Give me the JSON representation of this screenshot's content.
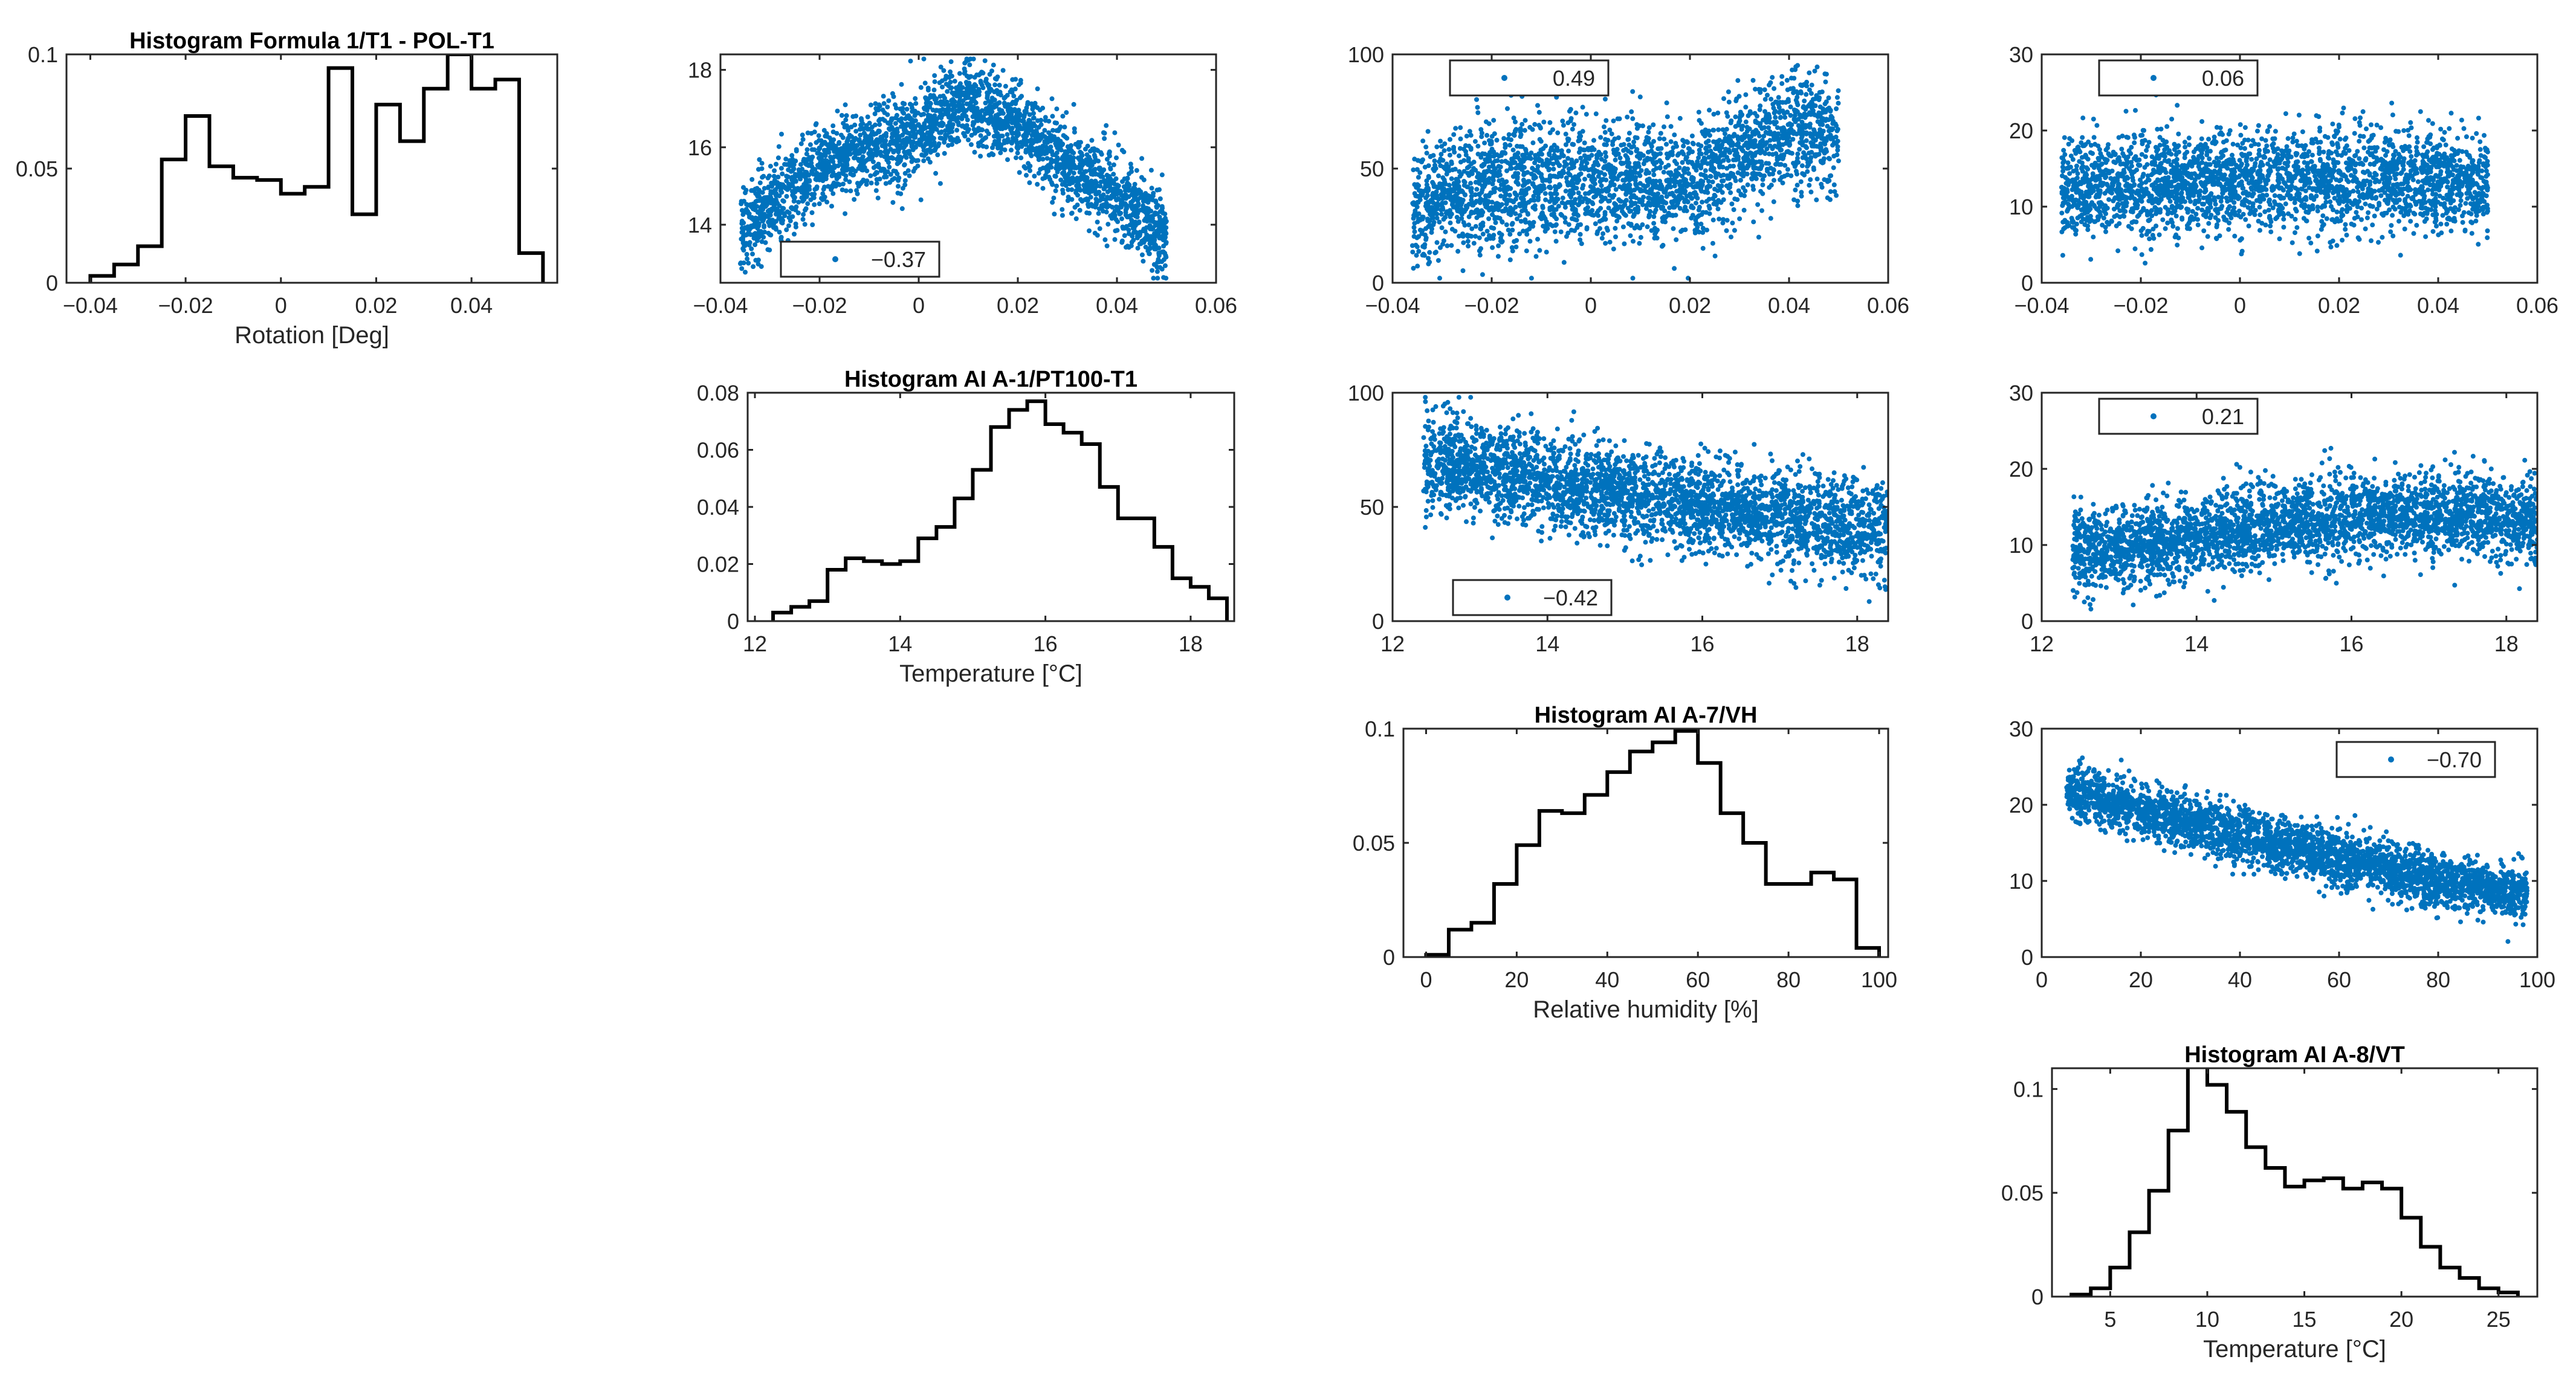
{
  "colors": {
    "scatter": "#0072BD",
    "histogram": "#000000",
    "axis": "#262626",
    "legend_border": "#262626"
  },
  "chart_data": [
    {
      "id": "h1",
      "type": "histogram",
      "title": "Histogram Formula 1/T1 - POL-T1",
      "xlabel": "Rotation [Deg]",
      "ylabel": "",
      "xlim": [
        -0.045,
        0.058
      ],
      "ylim": [
        0,
        0.1
      ],
      "xticks": [
        -0.04,
        -0.02,
        0,
        0.02,
        0.04
      ],
      "yticks": [
        0,
        0.05,
        0.1
      ],
      "xtick_labels": [
        "−0.04",
        "−0.02",
        "0",
        "0.02",
        "0.04"
      ],
      "ytick_labels": [
        "0",
        "0.05",
        "0.1"
      ],
      "edges": [
        -0.04,
        -0.035,
        -0.03,
        -0.025,
        -0.02,
        -0.015,
        -0.01,
        -0.005,
        0,
        0.005,
        0.01,
        0.015,
        0.02,
        0.025,
        0.03,
        0.035,
        0.04,
        0.045,
        0.05,
        0.055
      ],
      "values": [
        0.003,
        0.008,
        0.016,
        0.054,
        0.073,
        0.051,
        0.046,
        0.045,
        0.039,
        0.042,
        0.094,
        0.03,
        0.078,
        0.062,
        0.085,
        0.1,
        0.085,
        0.089,
        0.013
      ]
    },
    {
      "id": "s12",
      "type": "scatter",
      "xlim": [
        -0.04,
        0.06
      ],
      "ylim": [
        12.5,
        18.4
      ],
      "xticks": [
        -0.04,
        -0.02,
        0,
        0.02,
        0.04,
        0.06
      ],
      "yticks": [
        14,
        16,
        18
      ],
      "xtick_labels": [
        "−0.04",
        "−0.02",
        "0",
        "0.02",
        "0.04",
        "0.06"
      ],
      "ytick_labels": [
        "14",
        "16",
        "18"
      ],
      "legend": {
        "label": "−0.37",
        "location": "bottom-left"
      },
      "n_points": 2600,
      "trend": {
        "x": [
          -0.036,
          -0.02,
          0.0,
          0.01,
          0.02,
          0.03,
          0.04,
          0.05
        ],
        "y": [
          13.8,
          15.5,
          16.4,
          17.2,
          16.6,
          15.5,
          14.8,
          13.6
        ]
      },
      "spread": 0.9
    },
    {
      "id": "s13",
      "type": "scatter",
      "xlim": [
        -0.04,
        0.06
      ],
      "ylim": [
        0,
        100
      ],
      "xticks": [
        -0.04,
        -0.02,
        0,
        0.02,
        0.04,
        0.06
      ],
      "yticks": [
        0,
        50,
        100
      ],
      "xtick_labels": [
        "−0.04",
        "−0.02",
        "0",
        "0.02",
        "0.04",
        "0.06"
      ],
      "ytick_labels": [
        "0",
        "50",
        "100"
      ],
      "legend": {
        "label": "0.49",
        "location": "top-left"
      },
      "n_points": 2600,
      "trend": {
        "x": [
          -0.036,
          -0.02,
          0.0,
          0.02,
          0.03,
          0.04,
          0.05
        ],
        "y": [
          32,
          42,
          45,
          44,
          55,
          65,
          68
        ]
      },
      "spread": 22
    },
    {
      "id": "s14",
      "type": "scatter",
      "xlim": [
        -0.04,
        0.06
      ],
      "ylim": [
        0,
        30
      ],
      "xticks": [
        -0.04,
        -0.02,
        0,
        0.02,
        0.04,
        0.06
      ],
      "yticks": [
        0,
        10,
        20,
        30
      ],
      "xtick_labels": [
        "−0.04",
        "−0.02",
        "0",
        "0.02",
        "0.04",
        "0.06"
      ],
      "ytick_labels": [
        "0",
        "10",
        "20",
        "30"
      ],
      "legend": {
        "label": "0.06",
        "location": "top-left"
      },
      "n_points": 2600,
      "trend": {
        "x": [
          -0.036,
          -0.02,
          0.0,
          0.02,
          0.05
        ],
        "y": [
          12,
          13,
          13,
          14,
          13
        ]
      },
      "spread": 5.5
    },
    {
      "id": "h2",
      "type": "histogram",
      "title": "Histogram AI A-1/PT100-T1",
      "xlabel": "Temperature [°C]",
      "ylabel": "",
      "xlim": [
        11.9,
        18.6
      ],
      "ylim": [
        0,
        0.08
      ],
      "xticks": [
        12,
        14,
        16,
        18
      ],
      "yticks": [
        0,
        0.02,
        0.04,
        0.06,
        0.08
      ],
      "xtick_labels": [
        "12",
        "14",
        "16",
        "18"
      ],
      "ytick_labels": [
        "0",
        "0.02",
        "0.04",
        "0.06",
        "0.08"
      ],
      "edges": [
        12.25,
        12.5,
        12.75,
        13.0,
        13.25,
        13.5,
        13.75,
        14.0,
        14.25,
        14.5,
        14.75,
        15.0,
        15.25,
        15.5,
        15.75,
        16.0,
        16.25,
        16.5,
        16.75,
        17.0,
        17.25,
        17.5,
        17.75,
        18.0,
        18.25,
        18.5
      ],
      "values": [
        0.003,
        0.005,
        0.007,
        0.018,
        0.022,
        0.021,
        0.02,
        0.021,
        0.029,
        0.033,
        0.043,
        0.053,
        0.068,
        0.074,
        0.077,
        0.069,
        0.066,
        0.062,
        0.047,
        0.036,
        0.036,
        0.026,
        0.015,
        0.012,
        0.008
      ]
    },
    {
      "id": "s23",
      "type": "scatter",
      "xlim": [
        12,
        18.4
      ],
      "ylim": [
        0,
        100
      ],
      "xticks": [
        12,
        14,
        16,
        18
      ],
      "yticks": [
        0,
        50,
        100
      ],
      "xtick_labels": [
        "12",
        "14",
        "16",
        "18"
      ],
      "ytick_labels": [
        "0",
        "50",
        "100"
      ],
      "legend": {
        "label": "−0.42",
        "location": "bottom-left"
      },
      "n_points": 3000,
      "trend": {
        "x": [
          12.4,
          13.5,
          14.5,
          15.5,
          16.5,
          17.5,
          18.4
        ],
        "y": [
          70,
          65,
          58,
          52,
          48,
          44,
          40
        ]
      },
      "spread": 17
    },
    {
      "id": "s24",
      "type": "scatter",
      "xlim": [
        12,
        18.4
      ],
      "ylim": [
        0,
        30
      ],
      "xticks": [
        12,
        14,
        16,
        18
      ],
      "yticks": [
        0,
        10,
        20,
        30
      ],
      "xtick_labels": [
        "12",
        "14",
        "16",
        "18"
      ],
      "ytick_labels": [
        "0",
        "10",
        "20",
        "30"
      ],
      "legend": {
        "label": "0.21",
        "location": "top-left"
      },
      "n_points": 3000,
      "trend": {
        "x": [
          12.4,
          13.5,
          14.5,
          15.5,
          16.5,
          17.5,
          18.4
        ],
        "y": [
          9,
          10,
          12,
          13,
          14,
          14,
          13
        ]
      },
      "spread": 4.5
    },
    {
      "id": "h3",
      "type": "histogram",
      "title": "Histogram AI A-7/VH",
      "xlabel": "Relative humidity [%]",
      "ylabel": "",
      "xlim": [
        -5,
        102
      ],
      "ylim": [
        0,
        0.1
      ],
      "xticks": [
        0,
        20,
        40,
        60,
        80,
        100
      ],
      "yticks": [
        0,
        0.05,
        0.1
      ],
      "xtick_labels": [
        "0",
        "20",
        "40",
        "60",
        "80",
        "100"
      ],
      "ytick_labels": [
        "0",
        "0.05",
        "0.1"
      ],
      "edges": [
        0,
        5,
        10,
        15,
        20,
        25,
        30,
        35,
        40,
        45,
        50,
        55,
        60,
        65,
        70,
        75,
        80,
        85,
        90,
        95,
        100
      ],
      "values": [
        0.001,
        0.012,
        0.015,
        0.032,
        0.049,
        0.064,
        0.063,
        0.071,
        0.081,
        0.09,
        0.094,
        0.099,
        0.085,
        0.063,
        0.05,
        0.032,
        0.032,
        0.037,
        0.034,
        0.004
      ]
    },
    {
      "id": "s34",
      "type": "scatter",
      "xlim": [
        0,
        100
      ],
      "ylim": [
        0,
        30
      ],
      "xticks": [
        0,
        20,
        40,
        60,
        80,
        100
      ],
      "yticks": [
        0,
        10,
        20,
        30
      ],
      "xtick_labels": [
        "0",
        "20",
        "40",
        "60",
        "80",
        "100"
      ],
      "ytick_labels": [
        "0",
        "10",
        "20",
        "30"
      ],
      "legend": {
        "label": "−0.70",
        "location": "top-right"
      },
      "n_points": 3000,
      "trend": {
        "x": [
          5,
          20,
          40,
          60,
          80,
          98
        ],
        "y": [
          22,
          19,
          16,
          13,
          10,
          8
        ]
      },
      "spread": 3
    },
    {
      "id": "h4",
      "type": "histogram",
      "title": "Histogram AI A-8/VT",
      "xlabel": "Temperature [°C]",
      "ylabel": "",
      "xlim": [
        2,
        27
      ],
      "ylim": [
        0,
        0.11
      ],
      "xticks": [
        5,
        10,
        15,
        20,
        25
      ],
      "yticks": [
        0,
        0.05,
        0.1
      ],
      "xtick_labels": [
        "5",
        "10",
        "15",
        "20",
        "25"
      ],
      "ytick_labels": [
        "0",
        "0.05",
        "0.1"
      ],
      "edges": [
        3,
        4,
        5,
        6,
        7,
        8,
        9,
        10,
        11,
        12,
        13,
        14,
        15,
        16,
        17,
        18,
        19,
        20,
        21,
        22,
        23,
        24,
        25,
        26
      ],
      "values": [
        0.001,
        0.004,
        0.014,
        0.031,
        0.051,
        0.08,
        0.115,
        0.102,
        0.089,
        0.072,
        0.062,
        0.053,
        0.056,
        0.057,
        0.052,
        0.055,
        0.052,
        0.038,
        0.024,
        0.014,
        0.009,
        0.004,
        0.002
      ]
    }
  ]
}
